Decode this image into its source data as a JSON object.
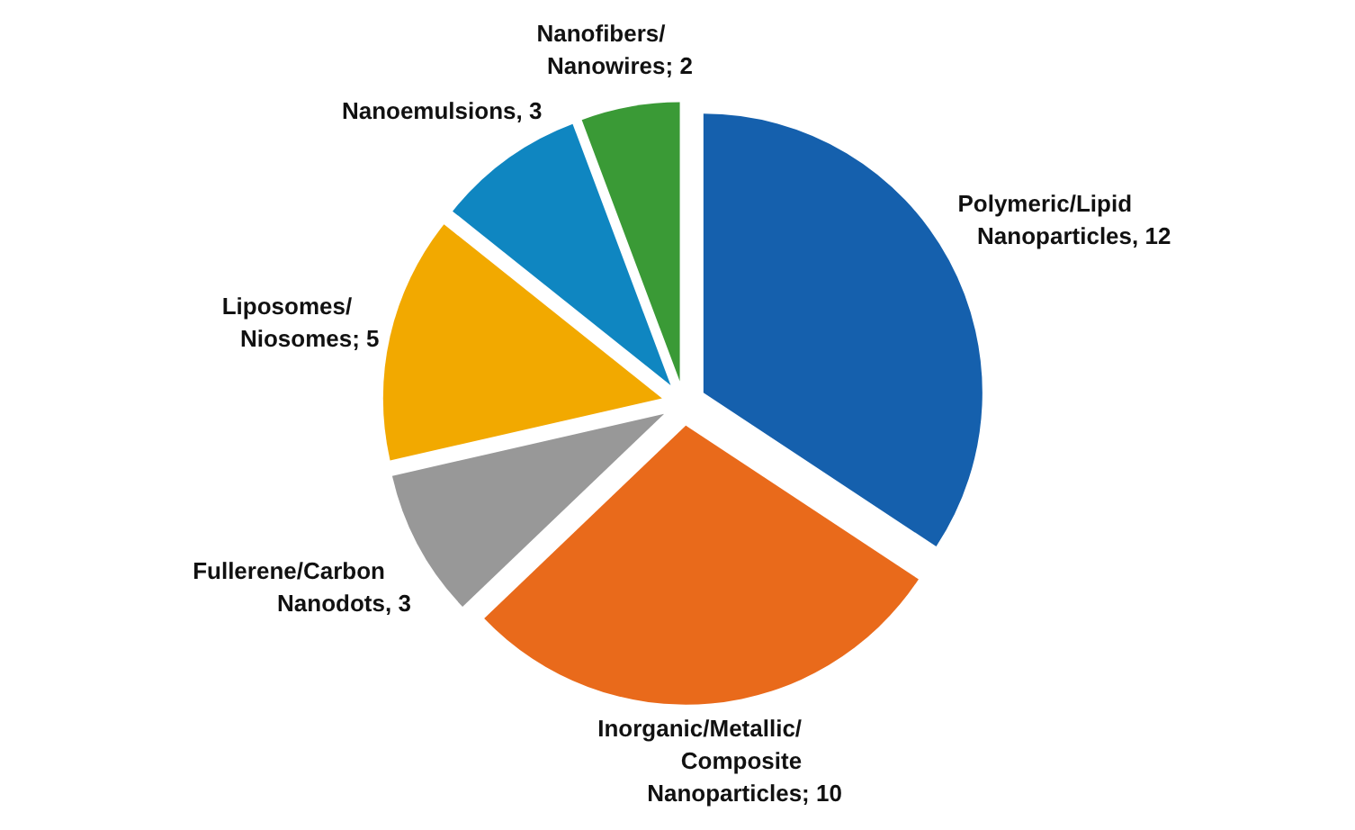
{
  "chart_data": {
    "type": "pie",
    "categories": [
      "Polymeric/Lipid Nanoparticles",
      "Inorganic/Metallic/Composite Nanoparticles",
      "Fullerene/Carbon Nanodots",
      "Liposomes/Niosomes",
      "Nanoemulsions",
      "Nanofibers/Nanowires"
    ],
    "values": [
      12,
      10,
      3,
      5,
      3,
      2
    ],
    "value_labels": [
      ", 12",
      "; 10",
      ", 3",
      "; 5",
      ", 3",
      "; 2"
    ],
    "colors": [
      "#1560ad",
      "#e96a1b",
      "#989898",
      "#f2a900",
      "#0f86c1",
      "#3a9a36"
    ]
  }
}
